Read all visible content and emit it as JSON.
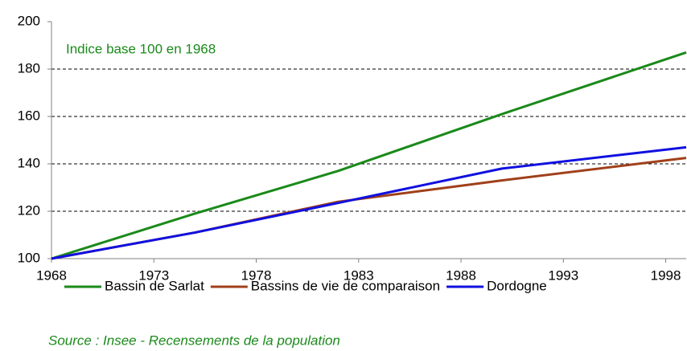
{
  "chart_data": {
    "type": "line",
    "annotation": "Indice base 100 en 1968",
    "source": "Source : Insee - Recensements de la population",
    "x": [
      1968,
      1975,
      1982,
      1990,
      1999
    ],
    "series": [
      {
        "name": "Bassin de Sarlat",
        "color": "#1a8a1a",
        "values": [
          100,
          119,
          137,
          161,
          187
        ]
      },
      {
        "name": "Bassins de vie de comparaison",
        "color": "#a0401a",
        "values": [
          100,
          111,
          124,
          133,
          142.5
        ]
      },
      {
        "name": "Dordogne",
        "color": "#1010e0",
        "values": [
          100,
          111,
          123.5,
          138,
          147
        ]
      }
    ],
    "xlim": [
      1968,
      1999
    ],
    "xticks": [
      1968,
      1973,
      1978,
      1983,
      1988,
      1993,
      1998
    ],
    "ylim": [
      100,
      200
    ],
    "yticks": [
      100,
      120,
      140,
      160,
      180,
      200
    ],
    "grid": true,
    "legend": "bottom"
  }
}
